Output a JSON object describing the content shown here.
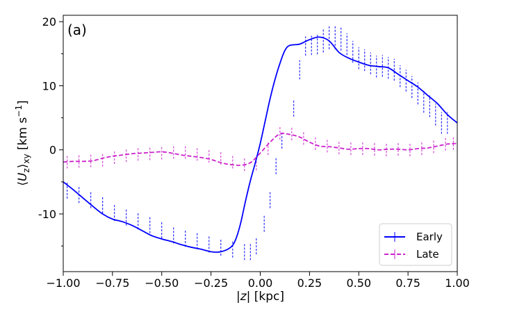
{
  "chart_data": {
    "type": "line",
    "panel_label": "(a)",
    "xlabel": "|z| [kpc]",
    "ylabel": "⟨U_z⟩_xy [km s^-1]",
    "xlim": [
      -1.0,
      1.0
    ],
    "ylim": [
      -19,
      21
    ],
    "x_ticks": [
      -1.0,
      -0.75,
      -0.5,
      -0.25,
      0.0,
      0.25,
      0.5,
      0.75,
      1.0
    ],
    "x_tick_labels": [
      "−1.00",
      "−0.75",
      "−0.50",
      "−0.25",
      "0.00",
      "0.25",
      "0.50",
      "0.75",
      "1.00"
    ],
    "y_ticks": [
      -10,
      0,
      10,
      20
    ],
    "y_tick_labels": [
      "-10",
      "0",
      "10",
      "20"
    ],
    "y_minor_ticks": [
      -15,
      -5,
      5,
      15
    ],
    "grid": false,
    "legend_position": "lower-right",
    "series": [
      {
        "name": "Early",
        "color": "#0000ff",
        "dash": "solid",
        "x": [
          -1.0,
          -0.95,
          -0.9,
          -0.85,
          -0.8,
          -0.75,
          -0.7,
          -0.65,
          -0.6,
          -0.55,
          -0.5,
          -0.45,
          -0.4,
          -0.35,
          -0.3,
          -0.25,
          -0.2,
          -0.15,
          -0.125,
          -0.1,
          -0.075,
          -0.05,
          -0.025,
          0.0,
          0.025,
          0.05,
          0.075,
          0.1,
          0.125,
          0.15,
          0.2,
          0.25,
          0.3,
          0.35,
          0.4,
          0.45,
          0.5,
          0.55,
          0.6,
          0.65,
          0.7,
          0.75,
          0.8,
          0.85,
          0.9,
          0.95,
          1.0
        ],
        "y": [
          -5.0,
          -6.2,
          -7.5,
          -8.8,
          -10.0,
          -10.8,
          -11.2,
          -11.8,
          -12.6,
          -13.4,
          -13.9,
          -14.3,
          -14.8,
          -15.2,
          -15.5,
          -15.9,
          -15.9,
          -15.2,
          -14.0,
          -11.5,
          -8.0,
          -4.8,
          -2.0,
          1.0,
          4.5,
          8.0,
          11.0,
          13.5,
          15.5,
          16.3,
          16.5,
          17.2,
          17.6,
          17.0,
          15.2,
          14.3,
          13.7,
          13.2,
          13.0,
          12.8,
          11.8,
          10.8,
          9.8,
          8.5,
          7.2,
          5.5,
          4.2
        ],
        "error_x": [
          -0.98,
          -0.92,
          -0.86,
          -0.8,
          -0.74,
          -0.68,
          -0.62,
          -0.56,
          -0.5,
          -0.44,
          -0.38,
          -0.32,
          -0.26,
          -0.2,
          -0.14,
          -0.08,
          -0.05,
          -0.02,
          0.02,
          0.05,
          0.08,
          0.11,
          0.17,
          0.2,
          0.23,
          0.26,
          0.29,
          0.32,
          0.35,
          0.38,
          0.41,
          0.44,
          0.47,
          0.5,
          0.53,
          0.56,
          0.59,
          0.62,
          0.65,
          0.68,
          0.71,
          0.74,
          0.77,
          0.8,
          0.83,
          0.86,
          0.89,
          0.92,
          0.95
        ],
        "error_y": [
          -6.3,
          -7.0,
          -7.8,
          -8.6,
          -9.8,
          -10.5,
          -11.1,
          -11.7,
          -12.5,
          -13.3,
          -13.8,
          -14.2,
          -14.7,
          -15.2,
          -15.5,
          -15.9,
          -15.9,
          -15.0,
          -11.5,
          -7.8,
          -2.5,
          1.5,
          6.5,
          12.5,
          16.2,
          16.3,
          16.5,
          17.0,
          17.5,
          17.5,
          17.3,
          16.5,
          15.3,
          14.3,
          14.0,
          13.5,
          13.0,
          13.1,
          12.8,
          12.5,
          11.5,
          10.8,
          9.8,
          8.8,
          7.5,
          6.8,
          5.5,
          4.2,
          4.2
        ],
        "error_size": [
          1.3,
          1.3,
          1.3,
          1.3,
          1.3,
          1.3,
          1.3,
          1.3,
          1.3,
          1.3,
          1.3,
          1.3,
          1.3,
          1.3,
          1.3,
          1.3,
          1.3,
          1.3,
          1.3,
          1.3,
          1.3,
          1.3,
          1.3,
          1.5,
          1.5,
          1.5,
          1.6,
          1.8,
          1.8,
          1.8,
          1.8,
          1.7,
          1.7,
          1.7,
          1.7,
          1.7,
          1.7,
          1.7,
          1.7,
          1.7,
          1.7,
          1.7,
          1.7,
          1.7,
          1.7,
          1.7,
          1.7,
          1.7,
          1.7
        ]
      },
      {
        "name": "Late",
        "color": "#cc22cc",
        "dash": "dashed",
        "x": [
          -1.0,
          -0.95,
          -0.9,
          -0.85,
          -0.8,
          -0.75,
          -0.7,
          -0.65,
          -0.6,
          -0.55,
          -0.5,
          -0.45,
          -0.4,
          -0.35,
          -0.3,
          -0.25,
          -0.2,
          -0.15,
          -0.1,
          -0.05,
          0.0,
          0.05,
          0.1,
          0.15,
          0.2,
          0.25,
          0.3,
          0.35,
          0.4,
          0.45,
          0.5,
          0.55,
          0.6,
          0.65,
          0.7,
          0.75,
          0.8,
          0.85,
          0.9,
          0.95,
          1.0
        ],
        "y": [
          -1.9,
          -1.8,
          -1.8,
          -1.7,
          -1.3,
          -1.0,
          -0.8,
          -0.6,
          -0.5,
          -0.4,
          -0.3,
          -0.5,
          -0.8,
          -1.0,
          -1.2,
          -1.5,
          -2.0,
          -2.3,
          -2.4,
          -2.0,
          -0.5,
          1.2,
          2.5,
          2.4,
          2.0,
          1.2,
          0.6,
          0.5,
          0.3,
          0.1,
          0.2,
          0.2,
          0.0,
          0.1,
          0.1,
          0.0,
          0.2,
          0.3,
          0.6,
          0.9,
          1.0
        ],
        "error_x": [
          -0.98,
          -0.92,
          -0.86,
          -0.8,
          -0.74,
          -0.68,
          -0.62,
          -0.56,
          -0.5,
          -0.44,
          -0.38,
          -0.32,
          -0.26,
          -0.2,
          -0.14,
          -0.08,
          -0.02,
          0.04,
          0.1,
          0.16,
          0.22,
          0.28,
          0.34,
          0.4,
          0.46,
          0.52,
          0.58,
          0.64,
          0.7,
          0.76,
          0.82,
          0.88,
          0.94,
          0.98
        ],
        "error_y": [
          -1.9,
          -1.8,
          -1.7,
          -1.6,
          -1.2,
          -0.9,
          -0.7,
          -0.6,
          -0.5,
          -0.4,
          -0.4,
          -0.7,
          -1.0,
          -1.3,
          -1.9,
          -2.3,
          -2.2,
          0.2,
          2.6,
          2.5,
          1.8,
          1.0,
          0.6,
          0.3,
          0.2,
          0.2,
          0.1,
          0.0,
          0.1,
          0.0,
          0.2,
          0.5,
          0.9,
          1.0
        ],
        "error_size": [
          1.0,
          1.0,
          1.0,
          1.0,
          1.0,
          1.0,
          1.0,
          1.0,
          1.0,
          1.0,
          1.0,
          1.0,
          1.0,
          1.0,
          1.0,
          1.0,
          1.0,
          1.0,
          1.0,
          1.0,
          1.0,
          1.0,
          1.0,
          1.0,
          1.0,
          1.0,
          1.0,
          1.0,
          1.0,
          1.0,
          1.0,
          1.0,
          1.0,
          1.0
        ]
      }
    ]
  }
}
